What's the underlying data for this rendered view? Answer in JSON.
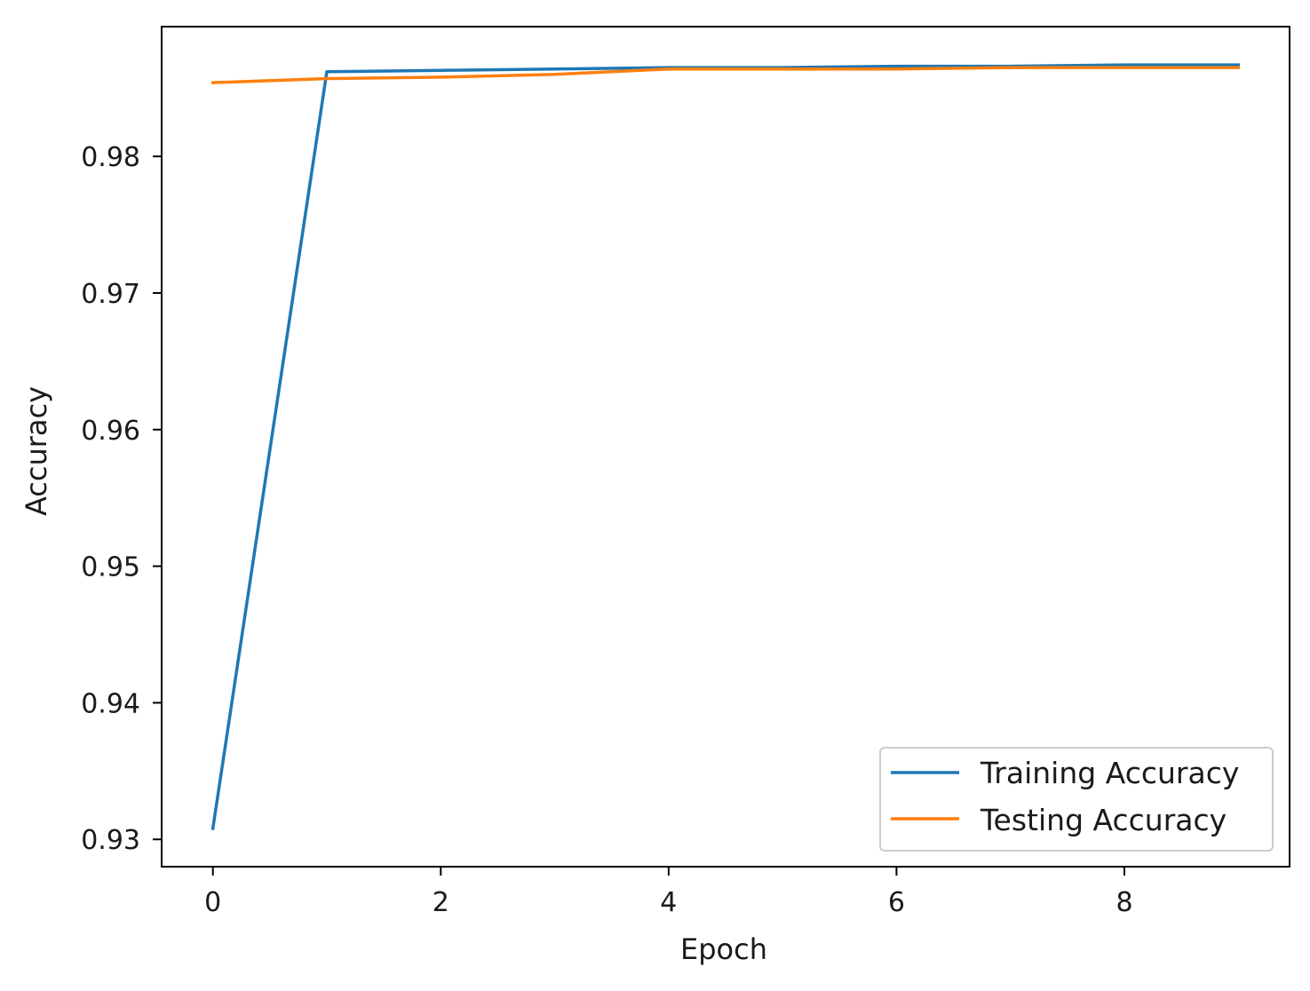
{
  "chart_data": {
    "type": "line",
    "title": "",
    "xlabel": "Epoch",
    "ylabel": "Accuracy",
    "xlim": [
      -0.45,
      9.45
    ],
    "ylim": [
      0.928,
      0.9895
    ],
    "xticks": [
      0,
      2,
      4,
      6,
      8
    ],
    "yticks": [
      0.93,
      0.94,
      0.95,
      0.96,
      0.97,
      0.98
    ],
    "xtick_labels": [
      "0",
      "2",
      "4",
      "6",
      "8"
    ],
    "ytick_labels": [
      "0.93",
      "0.94",
      "0.95",
      "0.96",
      "0.97",
      "0.98"
    ],
    "grid": false,
    "legend_position": "lower-right",
    "x": [
      0,
      1,
      2,
      3,
      4,
      5,
      6,
      7,
      8,
      9
    ],
    "series": [
      {
        "name": "Training Accuracy",
        "color": "#1f77b4",
        "values": [
          0.9308,
          0.9862,
          0.9863,
          0.9864,
          0.9865,
          0.9865,
          0.9866,
          0.9866,
          0.9867,
          0.9867
        ]
      },
      {
        "name": "Testing Accuracy",
        "color": "#ff7f0e",
        "values": [
          0.9854,
          0.9857,
          0.9858,
          0.986,
          0.9864,
          0.9864,
          0.9864,
          0.9865,
          0.9865,
          0.9865
        ]
      }
    ]
  }
}
